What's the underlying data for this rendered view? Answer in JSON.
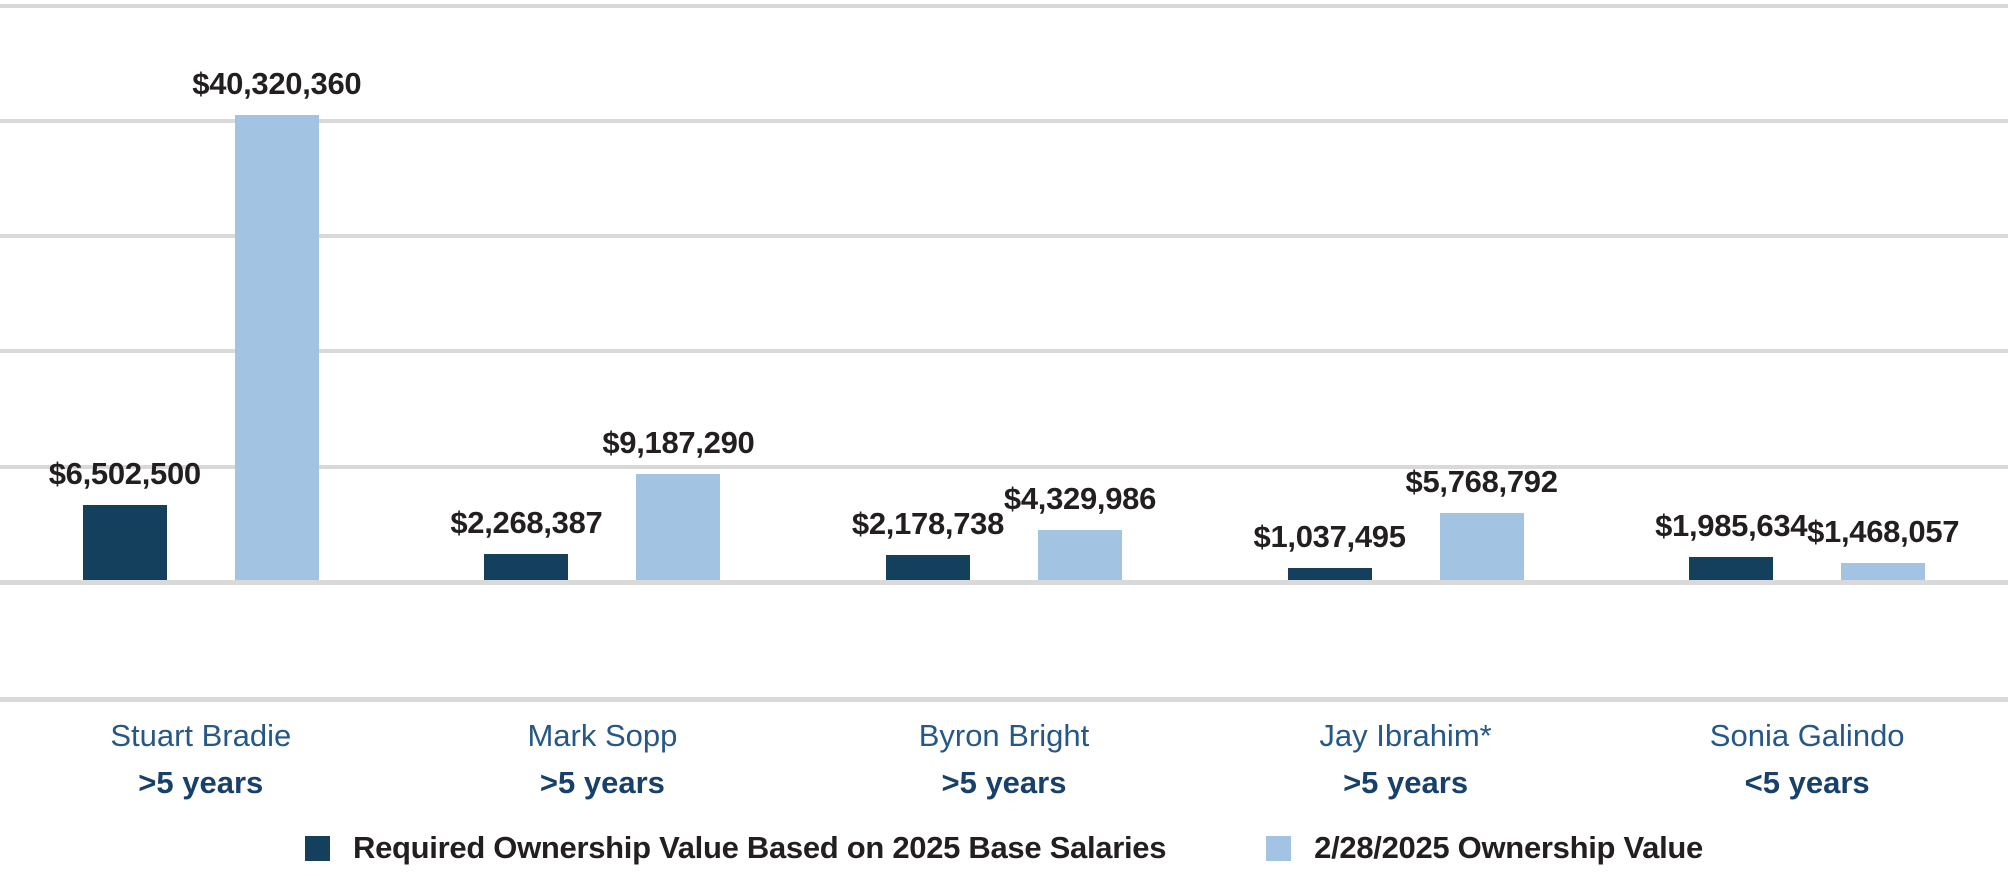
{
  "chart_data": {
    "type": "bar",
    "title": "",
    "categories": [
      "Stuart Bradie",
      "Mark Sopp",
      "Byron Bright",
      "Jay Ibrahim*",
      "Sonia Galindo"
    ],
    "tenure_labels": [
      ">5 years",
      ">5 years",
      ">5 years",
      ">5 years",
      "<5 years"
    ],
    "series": [
      {
        "name": "Required Ownership Value Based on 2025 Base Salaries",
        "color": "#14405e",
        "values": [
          6502500,
          2268387,
          2178738,
          1037495,
          1985634
        ],
        "labels": [
          "$6,502,500",
          "$2,268,387",
          "$2,178,738",
          "$1,037,495",
          "$1,985,634"
        ]
      },
      {
        "name": "2/28/2025 Ownership Value",
        "color": "#a2c4e2",
        "values": [
          40320360,
          9187290,
          4329986,
          5768792,
          1468057
        ],
        "labels": [
          "$40,320,360",
          "$9,187,290",
          "$4,329,986",
          "$5,768,792",
          "$1,468,057"
        ]
      }
    ],
    "ylim": [
      0,
      50000000
    ],
    "gridline_step": 10000000,
    "grid": true,
    "y_tick_labels_visible": false,
    "legend_position": "bottom",
    "colors": {
      "gridline": "#d9d9d9",
      "value_label": "#231f20",
      "category_label": "#255787",
      "tenure_label": "#17406b"
    }
  }
}
